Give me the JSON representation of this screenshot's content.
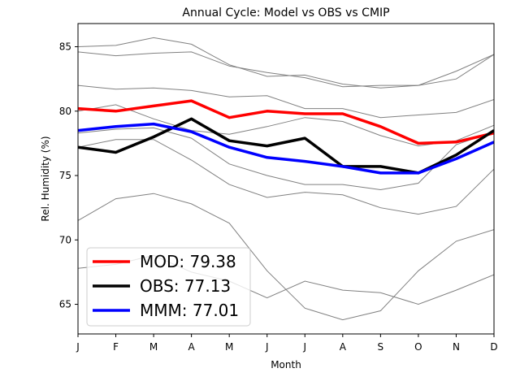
{
  "chart_data": {
    "type": "line",
    "title": "Annual Cycle: Model vs OBS vs CMIP",
    "xlabel": "Month",
    "ylabel": "Rel. Humidity (%)",
    "categories": [
      "J",
      "F",
      "M",
      "A",
      "M",
      "J",
      "J",
      "A",
      "S",
      "O",
      "N",
      "D"
    ],
    "ylim": [
      62.7,
      86.8
    ],
    "yticks": [
      65,
      70,
      75,
      80,
      85
    ],
    "grid": false,
    "legend_position": "lower-left",
    "cmip_color": "#808080",
    "cmip_models": [
      [
        85.0,
        85.1,
        85.7,
        85.2,
        83.6,
        82.7,
        82.8,
        82.1,
        81.8,
        82.0,
        83.1,
        84.4
      ],
      [
        84.6,
        84.3,
        84.5,
        84.6,
        83.5,
        83.0,
        82.6,
        81.9,
        82.0,
        82.0,
        82.5,
        84.4
      ],
      [
        82.0,
        81.7,
        81.8,
        81.6,
        81.1,
        81.2,
        80.2,
        80.2,
        79.5,
        79.7,
        79.9,
        80.9
      ],
      [
        80.0,
        80.5,
        79.4,
        78.5,
        78.2,
        78.8,
        79.5,
        79.2,
        78.1,
        77.3,
        77.7,
        78.9
      ],
      [
        77.2,
        77.8,
        77.8,
        76.2,
        74.3,
        73.3,
        73.7,
        73.5,
        72.5,
        72.0,
        72.6,
        75.5
      ],
      [
        78.3,
        78.6,
        78.7,
        77.9,
        75.9,
        75.0,
        74.3,
        74.3,
        73.9,
        74.4,
        77.4,
        78.4
      ],
      [
        71.5,
        73.2,
        73.6,
        72.8,
        71.3,
        67.6,
        64.7,
        63.8,
        64.5,
        67.6,
        69.9,
        70.8
      ],
      [
        67.8,
        68.1,
        68.8,
        67.5,
        66.8,
        65.5,
        66.8,
        66.1,
        65.9,
        65.0,
        66.1,
        67.3
      ]
    ],
    "series": [
      {
        "name": "MOD: 79.38",
        "color": "#ff0000",
        "values": [
          80.2,
          80.0,
          80.4,
          80.8,
          79.5,
          80.0,
          79.8,
          79.8,
          78.8,
          77.5,
          77.6,
          78.3
        ]
      },
      {
        "name": "OBS: 77.13",
        "color": "#000000",
        "values": [
          77.2,
          76.8,
          78.0,
          79.4,
          77.7,
          77.3,
          77.9,
          75.7,
          75.7,
          75.2,
          76.6,
          78.5
        ]
      },
      {
        "name": "MMM: 77.01",
        "color": "#0000ff",
        "values": [
          78.5,
          78.8,
          79.0,
          78.4,
          77.2,
          76.4,
          76.1,
          75.7,
          75.2,
          75.2,
          76.3,
          77.6
        ]
      }
    ]
  }
}
